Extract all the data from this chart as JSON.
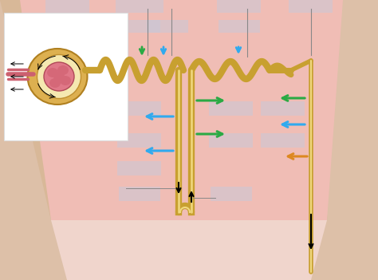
{
  "tubule_color": "#c8a030",
  "tubule_lw": 6,
  "collecting_lw": 4,
  "green_arrow": "#2aaa44",
  "blue_arrow": "#30aaee",
  "orange_arrow": "#dd8820",
  "fig_width": 4.74,
  "fig_height": 3.51,
  "bg_fill": "#d8a898",
  "cortex_fill": "#e8d0c8",
  "medulla_fill": "#f0c0b5",
  "inset_white": "#ffffff",
  "glom_outer_color": "#d4a030",
  "glom_pink": "#e07880",
  "label_box": "#d8d8e8"
}
